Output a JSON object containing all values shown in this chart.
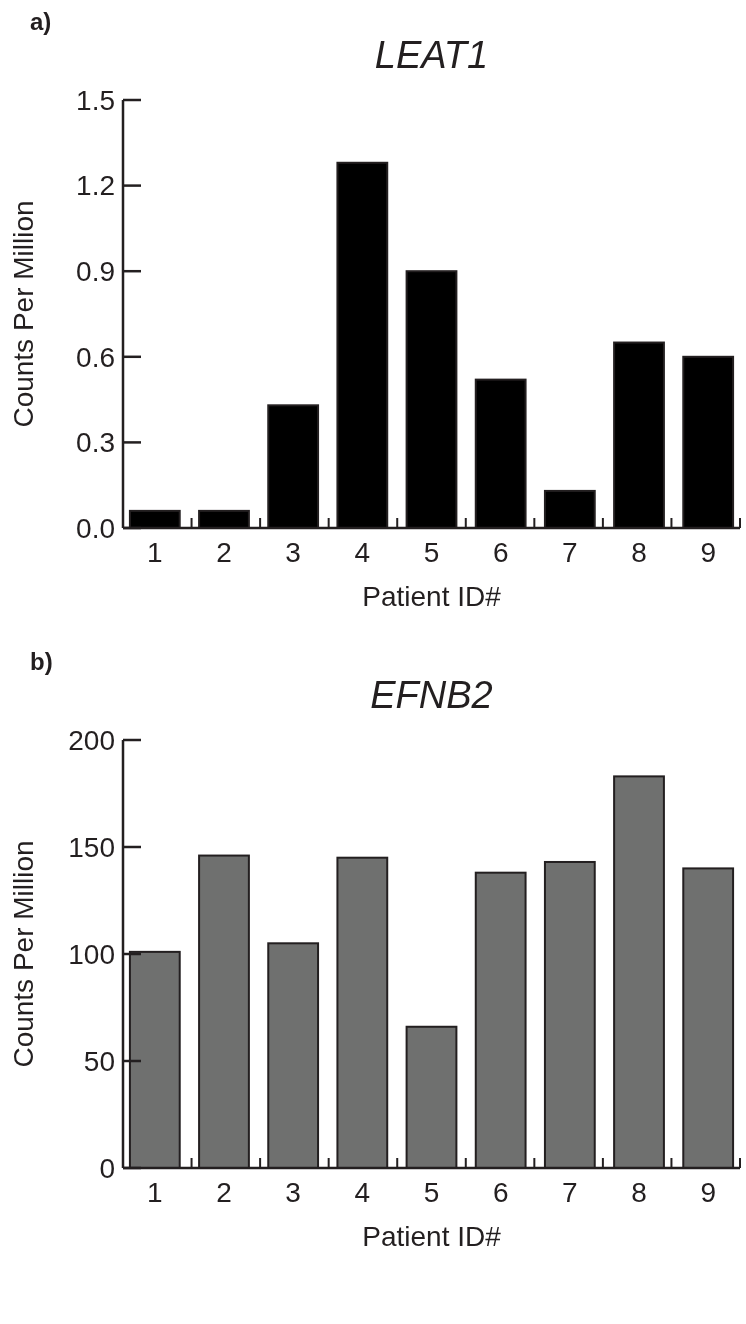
{
  "chart_data": [
    {
      "type": "bar",
      "title": "LEAT1",
      "annotations": [
        "a)"
      ],
      "xlabel": "Patient ID#",
      "ylabel": "Counts Per Million",
      "categories": [
        "1",
        "2",
        "3",
        "4",
        "5",
        "6",
        "7",
        "8",
        "9"
      ],
      "values": [
        0.06,
        0.06,
        0.43,
        1.28,
        0.9,
        0.52,
        0.13,
        0.65,
        0.6
      ],
      "color": "#000000",
      "ylim": [
        0,
        1.5
      ],
      "yticks": [
        {
          "value": 0,
          "label": "0.0"
        },
        0.3,
        0.6,
        0.9,
        1.2,
        1.5
      ],
      "grid": false
    },
    {
      "type": "bar",
      "title": "EFNB2",
      "annotations": [
        "b)"
      ],
      "xlabel": "Patient ID#",
      "ylabel": "Counts Per Million",
      "categories": [
        "1",
        "2",
        "3",
        "4",
        "5",
        "6",
        "7",
        "8",
        "9"
      ],
      "values": [
        101,
        146,
        105,
        145,
        66,
        138,
        143,
        183,
        140
      ],
      "color": "#6f706f",
      "ylim": [
        0,
        200
      ],
      "yticks": [
        0,
        50,
        100,
        150,
        200
      ],
      "grid": false
    }
  ]
}
